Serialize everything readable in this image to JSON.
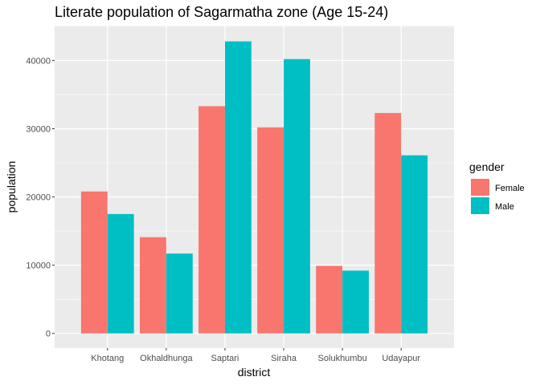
{
  "chart_data": {
    "type": "bar",
    "title": "Literate population of Sagarmatha zone (Age 15-24)",
    "xlabel": "district",
    "ylabel": "population",
    "categories": [
      "Khotang",
      "Okhaldhunga",
      "Saptari",
      "Siraha",
      "Solukhumbu",
      "Udayapur"
    ],
    "series": [
      {
        "name": "Female",
        "color": "#F8766D",
        "values": [
          20800,
          14100,
          33300,
          30200,
          9900,
          32300
        ]
      },
      {
        "name": "Male",
        "color": "#00BFC4",
        "values": [
          17500,
          11700,
          42800,
          40200,
          9200,
          26100
        ]
      }
    ],
    "yticks": [
      0,
      10000,
      20000,
      30000,
      40000
    ],
    "ylim": [
      -2150,
      45100
    ],
    "legend": {
      "title": "gender",
      "position": "right"
    },
    "grid": true,
    "panel_background": "#EBEBEB"
  }
}
